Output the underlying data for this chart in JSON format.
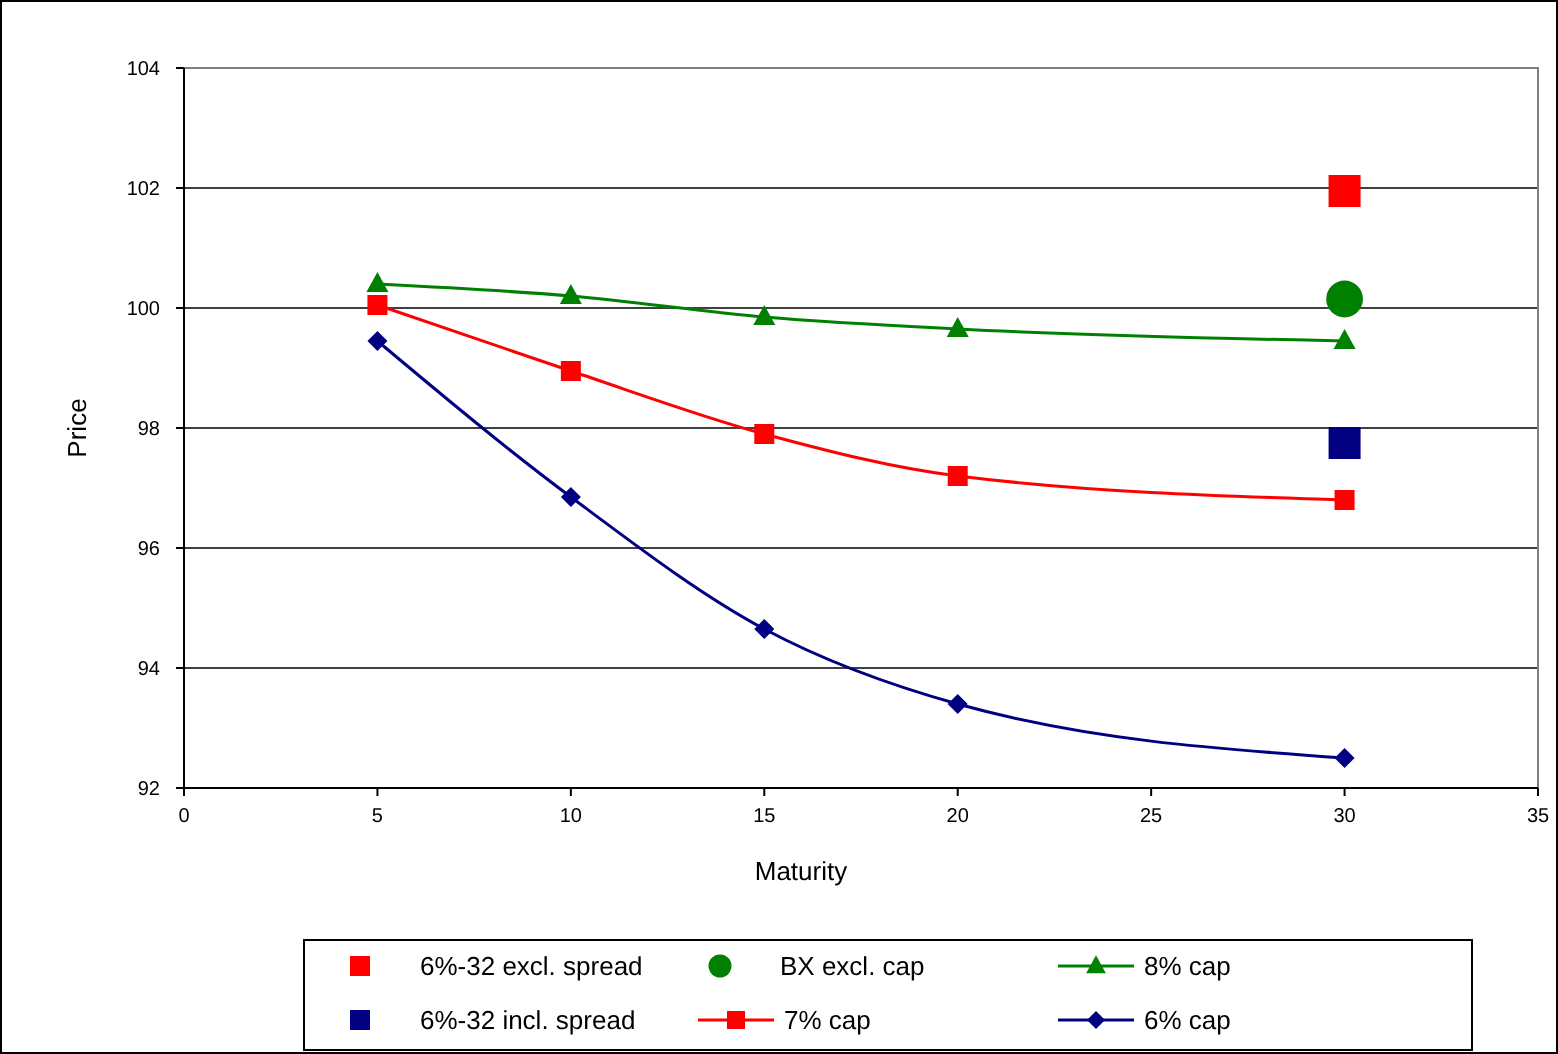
{
  "chart_data": {
    "type": "line",
    "xlabel": "Maturity",
    "ylabel": "Price",
    "xlim": [
      0,
      35
    ],
    "xticks": [
      0,
      5,
      10,
      15,
      20,
      25,
      30,
      35
    ],
    "ylim": [
      92,
      104
    ],
    "yticks": [
      92,
      94,
      96,
      98,
      100,
      102,
      104
    ],
    "grid": "y",
    "legend": "bottom",
    "series": [
      {
        "name": "6%-32 excl. spread",
        "type": "scatter",
        "marker": "square",
        "color": "#ff0000",
        "x": [
          30
        ],
        "values": [
          101.95
        ]
      },
      {
        "name": "BX excl. cap",
        "type": "scatter",
        "marker": "circle",
        "color": "#008000",
        "x": [
          30
        ],
        "values": [
          100.15
        ]
      },
      {
        "name": "8% cap",
        "marker": "triangle",
        "color": "#008000",
        "x": [
          5,
          10,
          15,
          20,
          30
        ],
        "values": [
          100.4,
          100.2,
          99.85,
          99.65,
          99.45
        ]
      },
      {
        "name": "6%-32 incl. spread",
        "type": "scatter",
        "marker": "square",
        "color": "#000080",
        "x": [
          30
        ],
        "values": [
          97.75
        ]
      },
      {
        "name": "7% cap",
        "marker": "square",
        "color": "#ff0000",
        "x": [
          5,
          10,
          15,
          20,
          30
        ],
        "values": [
          100.05,
          98.95,
          97.9,
          97.2,
          96.8
        ]
      },
      {
        "name": "6% cap",
        "marker": "diamond",
        "color": "#000080",
        "x": [
          5,
          10,
          15,
          20,
          30
        ],
        "values": [
          99.45,
          96.85,
          94.65,
          93.4,
          92.5
        ]
      }
    ]
  }
}
